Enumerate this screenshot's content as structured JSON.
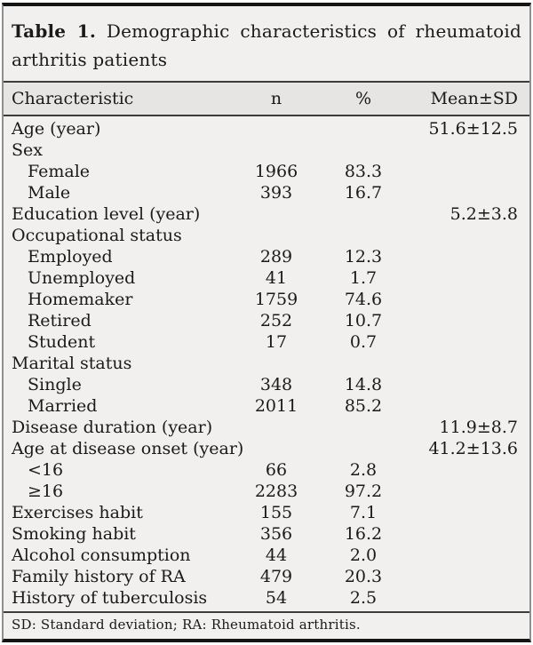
{
  "title": {
    "bold": "Table 1.",
    "line1_rest": "Demographic characteristics of rheumatoid",
    "line2": "arthritis patients"
  },
  "table": {
    "columns": [
      "Characteristic",
      "n",
      "%",
      "Mean±SD"
    ],
    "rows": [
      {
        "label": "Age (year)",
        "indent": false,
        "n": "",
        "pct": "",
        "mean_sd": "51.6±12.5"
      },
      {
        "label": "Sex",
        "indent": false,
        "n": "",
        "pct": "",
        "mean_sd": ""
      },
      {
        "label": "Female",
        "indent": true,
        "n": "1966",
        "pct": "83.3",
        "mean_sd": ""
      },
      {
        "label": "Male",
        "indent": true,
        "n": "393",
        "pct": "16.7",
        "mean_sd": ""
      },
      {
        "label": "Education level (year)",
        "indent": false,
        "n": "",
        "pct": "",
        "mean_sd": "5.2±3.8"
      },
      {
        "label": "Occupational status",
        "indent": false,
        "n": "",
        "pct": "",
        "mean_sd": ""
      },
      {
        "label": "Employed",
        "indent": true,
        "n": "289",
        "pct": "12.3",
        "mean_sd": ""
      },
      {
        "label": "Unemployed",
        "indent": true,
        "n": "41",
        "pct": "1.7",
        "mean_sd": ""
      },
      {
        "label": "Homemaker",
        "indent": true,
        "n": "1759",
        "pct": "74.6",
        "mean_sd": ""
      },
      {
        "label": "Retired",
        "indent": true,
        "n": "252",
        "pct": "10.7",
        "mean_sd": ""
      },
      {
        "label": "Student",
        "indent": true,
        "n": "17",
        "pct": "0.7",
        "mean_sd": ""
      },
      {
        "label": "Marital status",
        "indent": false,
        "n": "",
        "pct": "",
        "mean_sd": ""
      },
      {
        "label": "Single",
        "indent": true,
        "n": "348",
        "pct": "14.8",
        "mean_sd": ""
      },
      {
        "label": "Married",
        "indent": true,
        "n": "2011",
        "pct": "85.2",
        "mean_sd": ""
      },
      {
        "label": "Disease duration (year)",
        "indent": false,
        "n": "",
        "pct": "",
        "mean_sd": "11.9±8.7"
      },
      {
        "label": "Age at disease onset (year)",
        "indent": false,
        "n": "",
        "pct": "",
        "mean_sd": "41.2±13.6"
      },
      {
        "label": "<16",
        "indent": true,
        "n": "66",
        "pct": "2.8",
        "mean_sd": ""
      },
      {
        "label": "≥16",
        "indent": true,
        "n": "2283",
        "pct": "97.2",
        "mean_sd": ""
      },
      {
        "label": "Exercises habit",
        "indent": false,
        "n": "155",
        "pct": "7.1",
        "mean_sd": ""
      },
      {
        "label": "Smoking habit",
        "indent": false,
        "n": "356",
        "pct": "16.2",
        "mean_sd": ""
      },
      {
        "label": "Alcohol consumption",
        "indent": false,
        "n": "44",
        "pct": "2.0",
        "mean_sd": ""
      },
      {
        "label": "Family history of RA",
        "indent": false,
        "n": "479",
        "pct": "20.3",
        "mean_sd": ""
      },
      {
        "label": "History of tuberculosis",
        "indent": false,
        "n": "54",
        "pct": "2.5",
        "mean_sd": ""
      }
    ]
  },
  "footnote": "SD: Standard deviation; RA: Rheumatoid arthritis.",
  "colors": {
    "card_bg": "#f1f0ee",
    "header_band": "#e6e5e3",
    "rule": "#3c3c3c",
    "frame_heavy": "#141414",
    "frame_side": "#8f8f8f",
    "text": "#1a1a1a"
  }
}
